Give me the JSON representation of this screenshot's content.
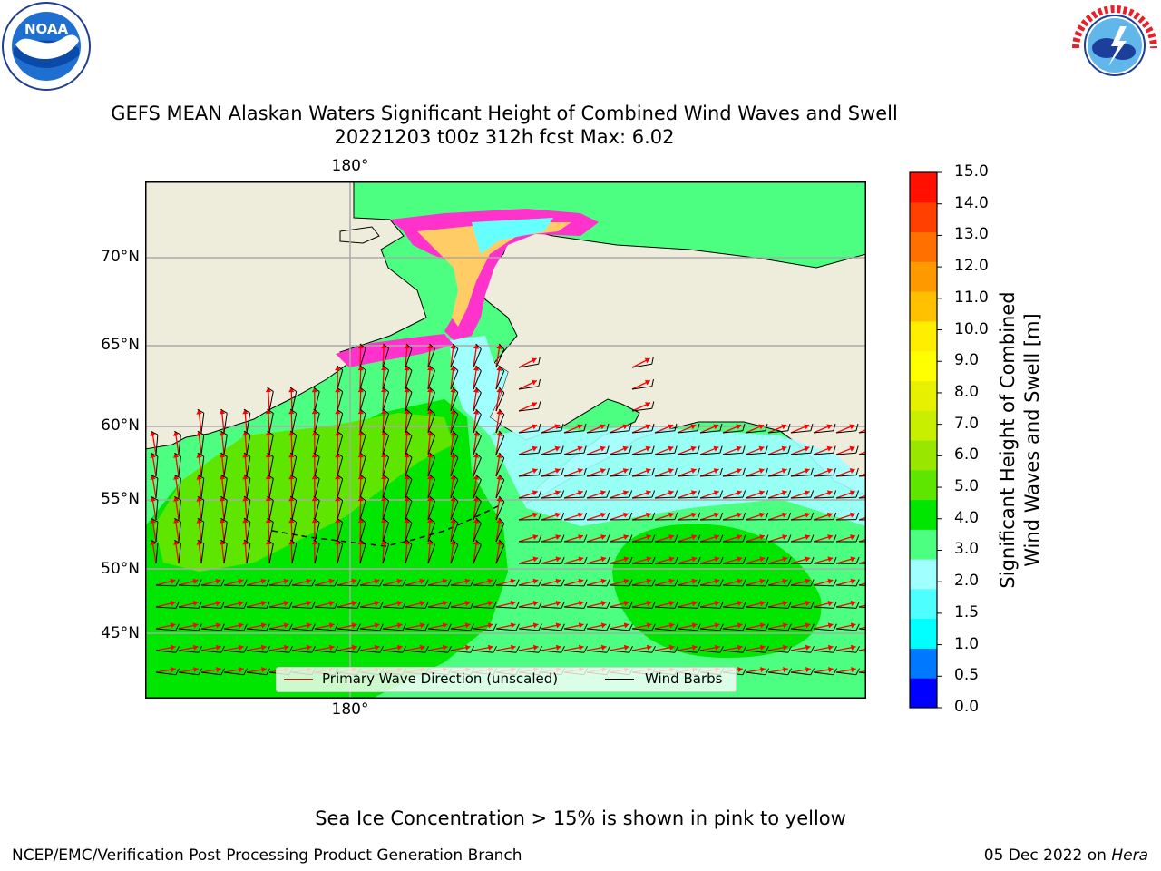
{
  "title": {
    "line1": "GEFS MEAN Alaskan Waters Significant Height of Combined Wind Waves and Swell",
    "line2": "20221203 t00z 312h fcst   Max: 6.02"
  },
  "logos": {
    "noaa_text": "NOAA",
    "noaa_ring": "NATIONAL OCEANIC AND ATMOSPHERIC ADMINISTRATION · U.S. DEPARTMENT OF COMMERCE",
    "nws_ring": "NATIONAL WEATHER SERVICE"
  },
  "map": {
    "lat_ticks": [
      "70°N",
      "65°N",
      "60°N",
      "55°N",
      "50°N",
      "45°N"
    ],
    "lon_tick_top": "180°",
    "lon_tick_bottom": "180°",
    "colors": {
      "land": "#eeeddc",
      "gridline": "#aaaaaa",
      "wave_arrow": "#ff0000",
      "wind_barb": "#000000"
    }
  },
  "legend": {
    "primary_wave": "Primary Wave Direction (unscaled)",
    "wind_barbs": "Wind Barbs"
  },
  "colorbar": {
    "title_line1": "Significant Height of Combined",
    "title_line2": "Wind Waves and Swell [m]",
    "labels": [
      "15.0",
      "14.0",
      "13.0",
      "12.0",
      "11.0",
      "10.0",
      "9.0",
      "8.0",
      "7.0",
      "6.0",
      "5.0",
      "4.0",
      "3.0",
      "2.0",
      "1.5",
      "1.0",
      "0.5",
      "0.0"
    ],
    "colors_bottom_to_top": [
      "#0000ff",
      "#0078ff",
      "#00ffff",
      "#4dffff",
      "#a0ffff",
      "#4dff80",
      "#00e600",
      "#5ee600",
      "#99e600",
      "#c8ee00",
      "#e6f000",
      "#ffff00",
      "#ffee00",
      "#ffc000",
      "#ff9900",
      "#ff7000",
      "#ff4000",
      "#ff1000"
    ]
  },
  "note": "Sea Ice Concentration > 15% is shown in pink to yellow",
  "footer": {
    "left": "NCEP/EMC/Verification Post Processing Product Generation Branch",
    "right_date": "05 Dec 2022 on ",
    "right_host": "Hera"
  }
}
